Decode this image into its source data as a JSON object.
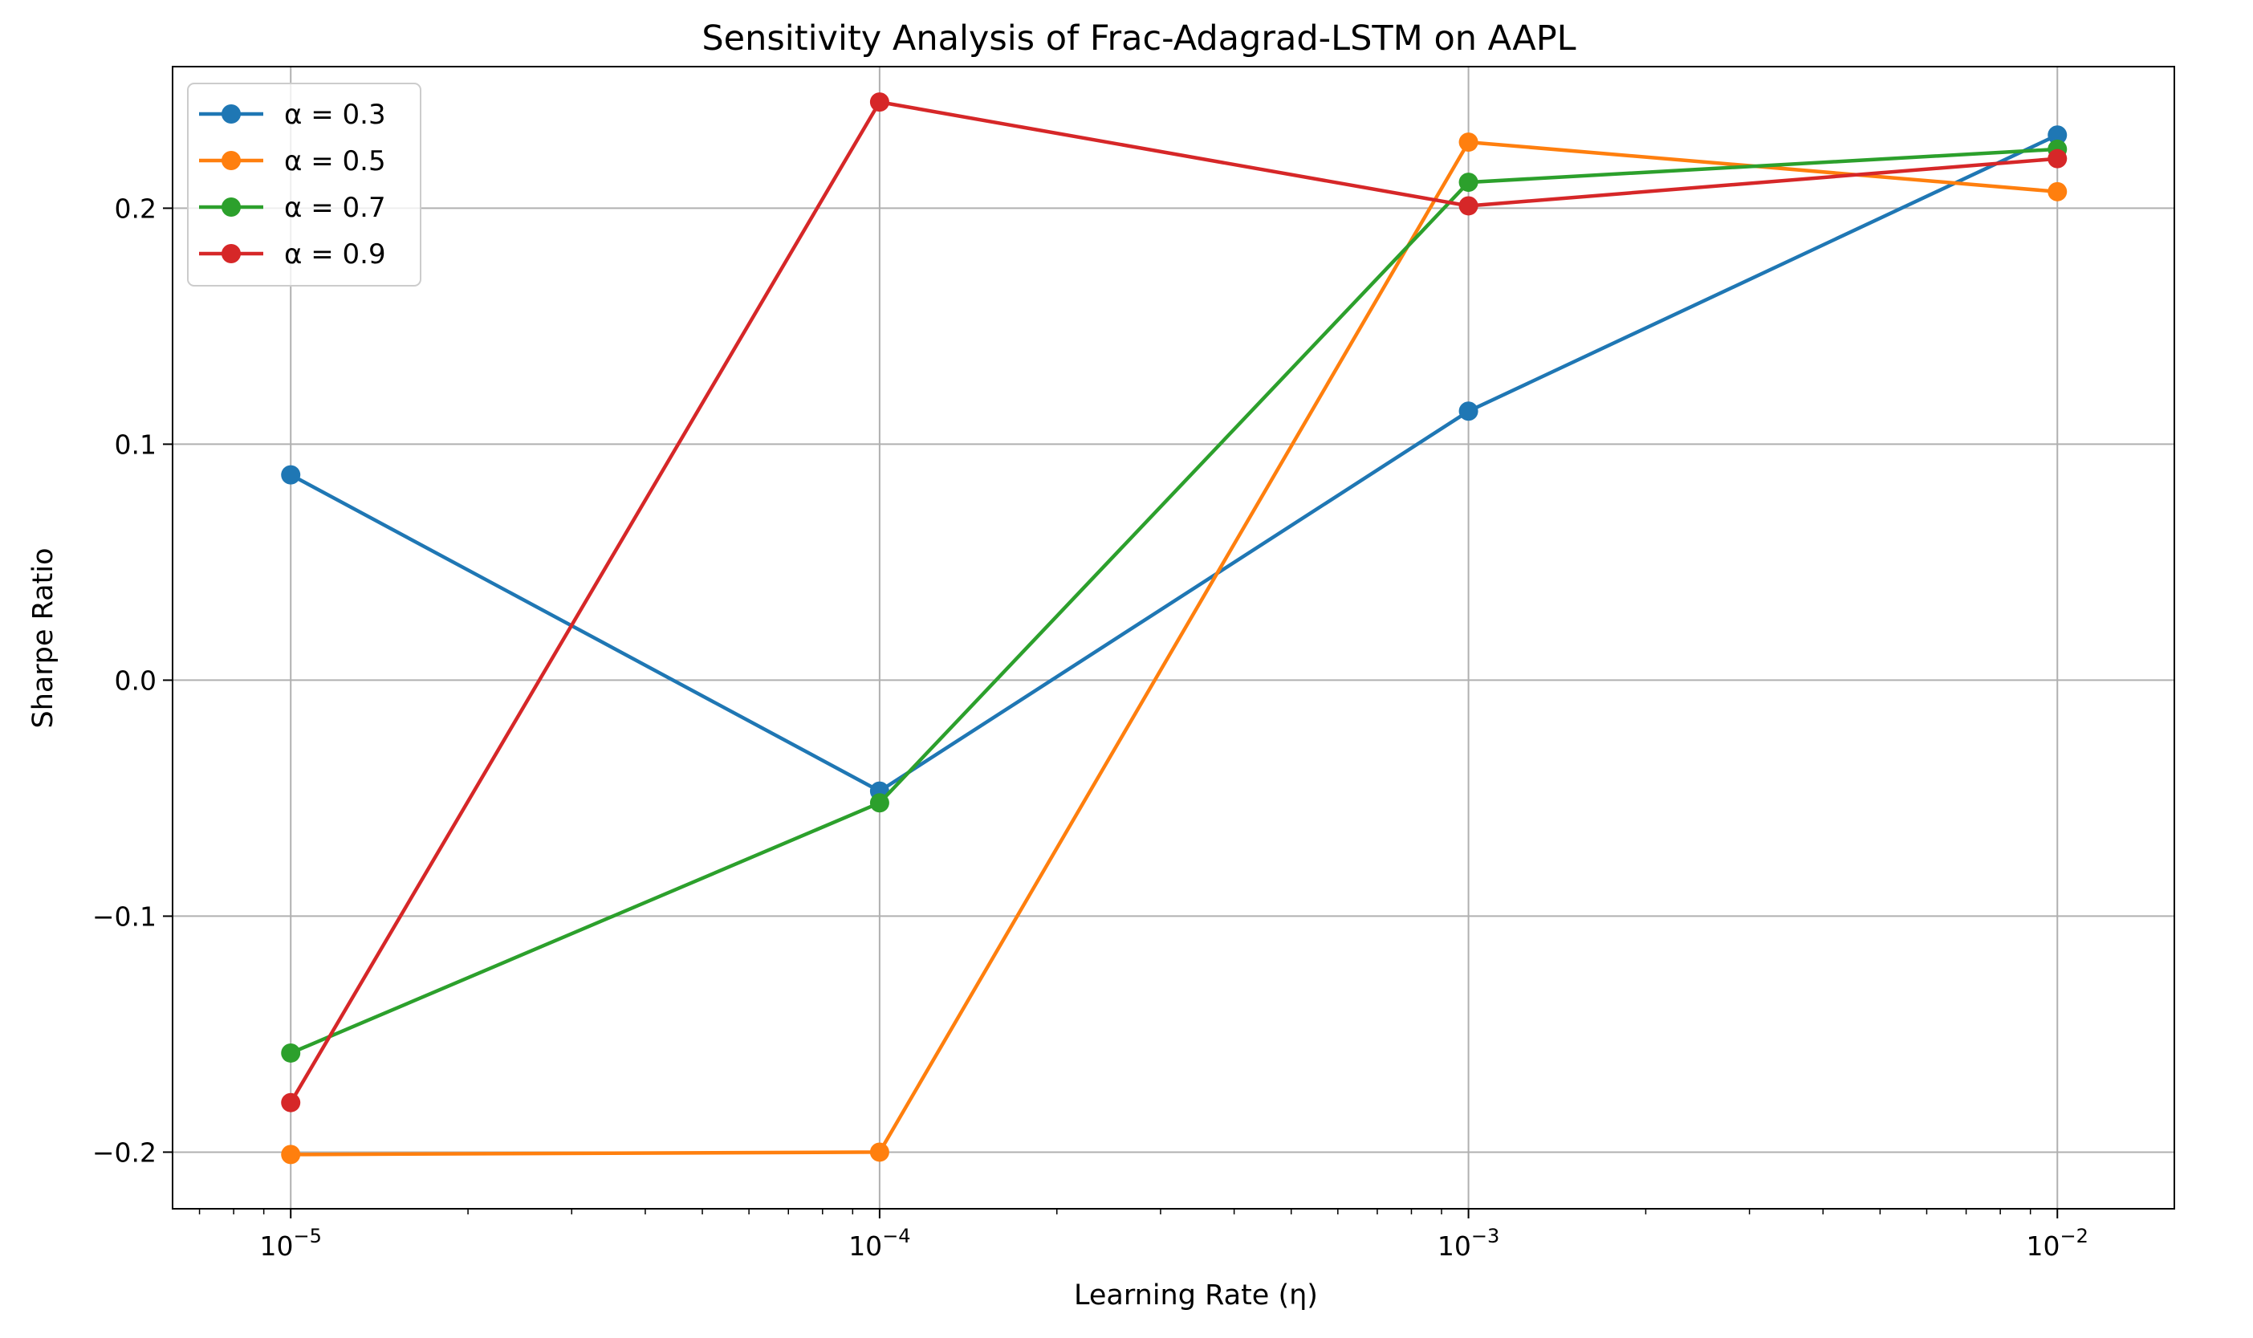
{
  "chart_data": {
    "type": "line",
    "title": "Sensitivity Analysis of Frac-Adagrad-LSTM on AAPL",
    "xlabel": "Learning Rate (η)",
    "ylabel": "Sharpe Ratio",
    "xscale": "log",
    "x": [
      1e-05,
      0.0001,
      0.001,
      0.01
    ],
    "x_tick_labels": [
      {
        "base": "10",
        "exp": "−5"
      },
      {
        "base": "10",
        "exp": "−4"
      },
      {
        "base": "10",
        "exp": "−3"
      },
      {
        "base": "10",
        "exp": "−2"
      }
    ],
    "y_ticks": [
      -0.2,
      -0.1,
      0.0,
      0.1,
      0.2
    ],
    "y_tick_labels": [
      "−0.2",
      "−0.1",
      "0.0",
      "0.1",
      "0.2"
    ],
    "xlim": [
      6.3e-06,
      0.0158
    ],
    "ylim": [
      -0.224,
      0.26
    ],
    "grid": true,
    "legend_position": "upper-left",
    "series": [
      {
        "name": "α = 0.3",
        "color": "#1f77b4",
        "values": [
          0.087,
          -0.047,
          0.114,
          0.231
        ]
      },
      {
        "name": "α = 0.5",
        "color": "#ff7f0e",
        "values": [
          -0.201,
          -0.2,
          0.228,
          0.207
        ]
      },
      {
        "name": "α = 0.7",
        "color": "#2ca02c",
        "values": [
          -0.158,
          -0.052,
          0.211,
          0.225
        ]
      },
      {
        "name": "α = 0.9",
        "color": "#d62728",
        "values": [
          -0.179,
          0.245,
          0.201,
          0.221
        ]
      }
    ]
  }
}
